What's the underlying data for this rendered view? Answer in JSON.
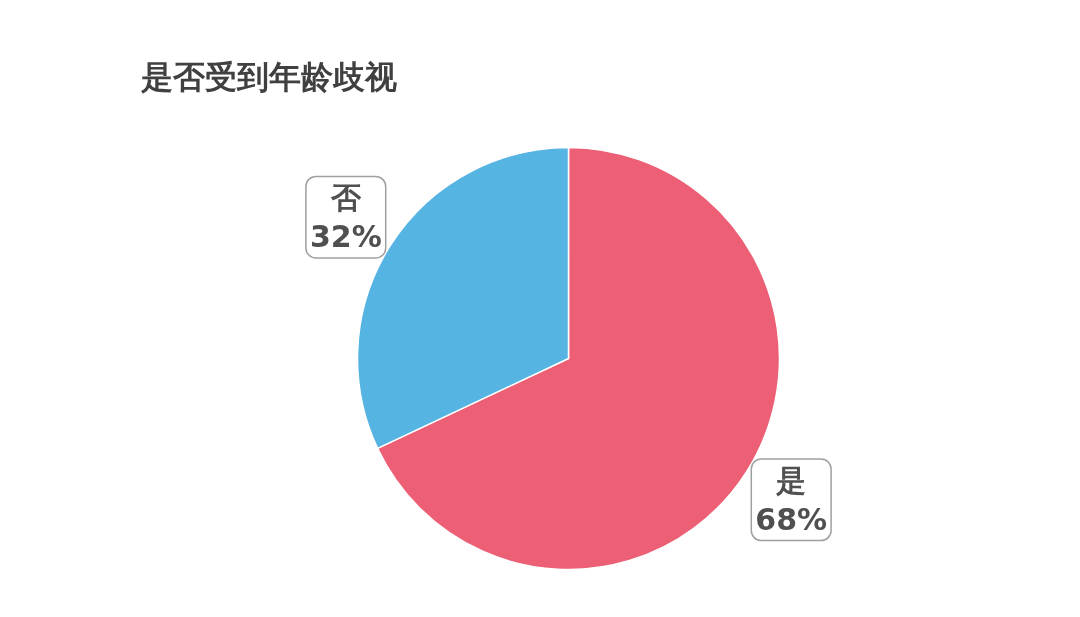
{
  "chart_data": {
    "type": "pie",
    "title": "是否受到年龄歧视",
    "categories": [
      "是",
      "否"
    ],
    "values": [
      68,
      32
    ],
    "value_labels": [
      "68%",
      "32%"
    ],
    "colors": [
      "#ec5f74",
      "#56b4e3"
    ]
  }
}
